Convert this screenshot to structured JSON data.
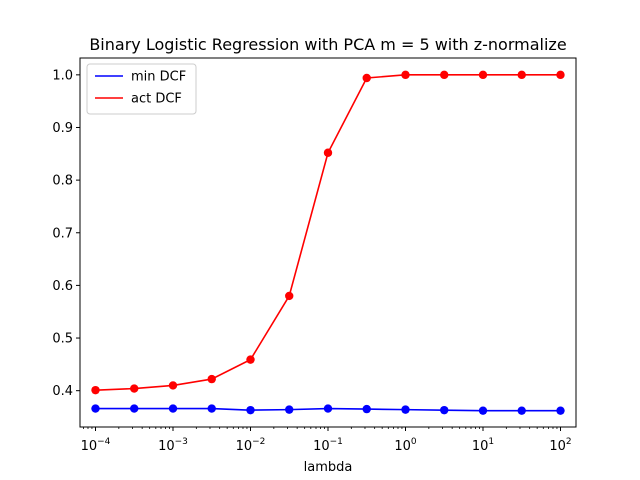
{
  "chart_data": {
    "type": "line",
    "title": "Binary Logistic Regression with PCA m = 5 with z-normalize",
    "xlabel": "lambda",
    "ylabel": "",
    "x_scale": "log",
    "x": [
      0.0001,
      0.000316,
      0.001,
      0.00316,
      0.01,
      0.0316,
      0.1,
      0.316,
      1,
      3.16,
      10,
      31.6,
      100
    ],
    "x_ticks": [
      {
        "value": 0.0001,
        "base": "10",
        "exp": "−4"
      },
      {
        "value": 0.001,
        "base": "10",
        "exp": "−3"
      },
      {
        "value": 0.01,
        "base": "10",
        "exp": "−2"
      },
      {
        "value": 0.1,
        "base": "10",
        "exp": "−1"
      },
      {
        "value": 1,
        "base": "10",
        "exp": "0"
      },
      {
        "value": 10,
        "base": "10",
        "exp": "1"
      },
      {
        "value": 100,
        "base": "10",
        "exp": "2"
      }
    ],
    "y_ticks": [
      "0.4",
      "0.5",
      "0.6",
      "0.7",
      "0.8",
      "0.9",
      "1.0"
    ],
    "y_tick_values": [
      0.4,
      0.5,
      0.6,
      0.7,
      0.8,
      0.9,
      1.0
    ],
    "xlim": [
      6.31e-05,
      158.5
    ],
    "ylim": [
      0.331,
      1.032
    ],
    "legend_position": "top-left",
    "grid": false,
    "series": [
      {
        "name": "min DCF",
        "color": "#0000ff",
        "marker": "circle",
        "values": [
          0.366,
          0.366,
          0.366,
          0.366,
          0.363,
          0.364,
          0.366,
          0.365,
          0.364,
          0.363,
          0.362,
          0.362,
          0.362
        ]
      },
      {
        "name": "act DCF",
        "color": "#ff0000",
        "marker": "circle",
        "values": [
          0.401,
          0.404,
          0.41,
          0.422,
          0.459,
          0.58,
          0.852,
          0.994,
          1.0,
          1.0,
          1.0,
          1.0,
          1.0
        ]
      }
    ]
  }
}
